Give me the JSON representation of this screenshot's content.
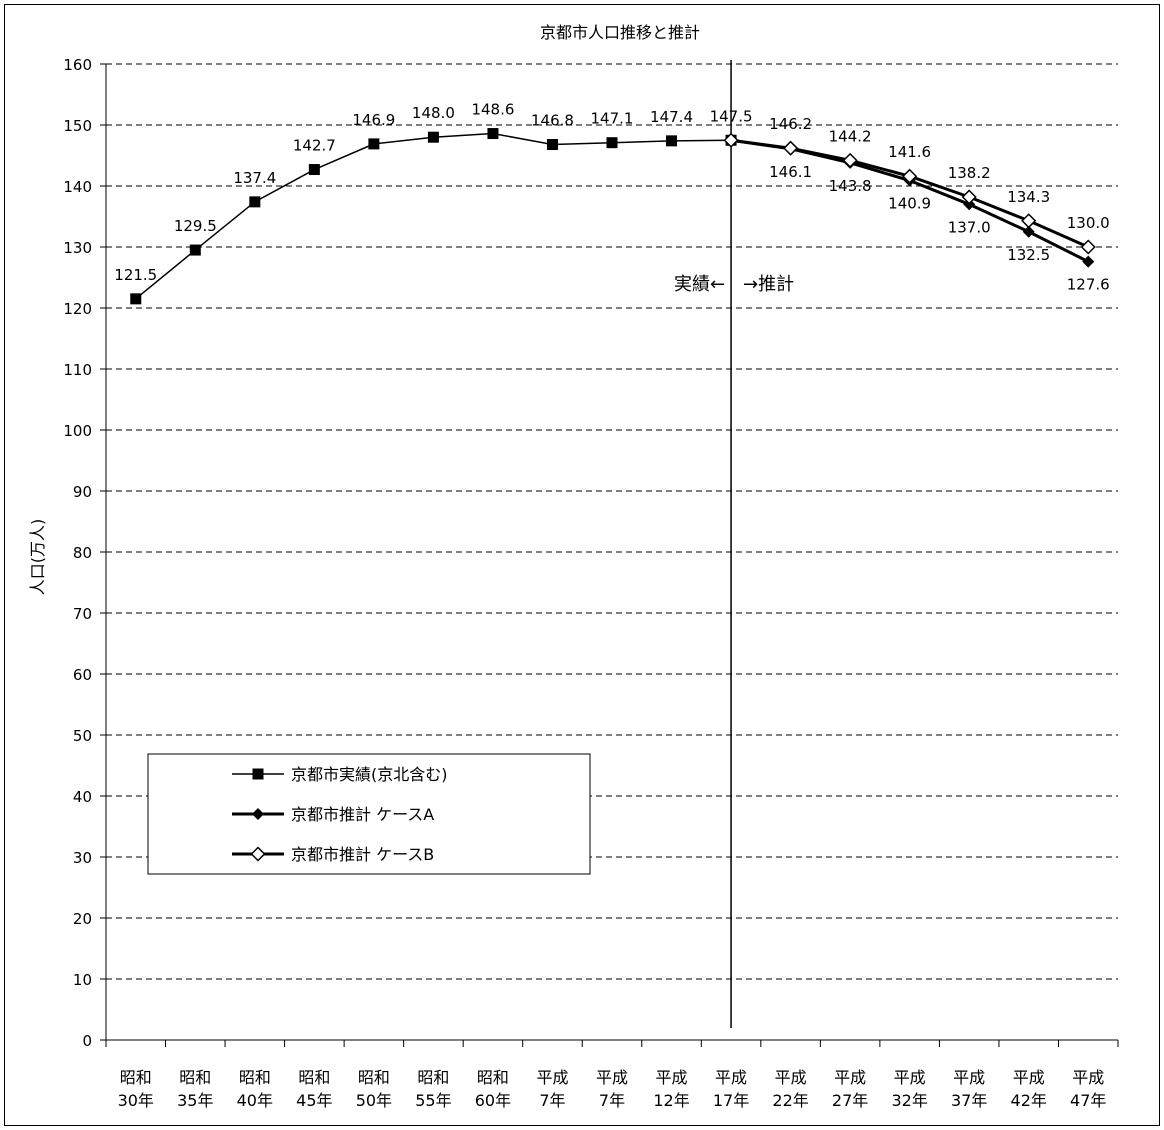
{
  "chart_data": {
    "type": "line",
    "title": "京都市人口推移と推計",
    "ylabel": "人口(万人)",
    "xlabel": "",
    "ylim": [
      0,
      160
    ],
    "yticks": [
      0,
      10,
      20,
      30,
      40,
      50,
      60,
      70,
      80,
      90,
      100,
      110,
      120,
      130,
      140,
      150,
      160
    ],
    "grid": true,
    "categories": [
      [
        "昭和",
        "30年"
      ],
      [
        "昭和",
        "35年"
      ],
      [
        "昭和",
        "40年"
      ],
      [
        "昭和",
        "45年"
      ],
      [
        "昭和",
        "50年"
      ],
      [
        "昭和",
        "55年"
      ],
      [
        "昭和",
        "60年"
      ],
      [
        "平成",
        "7年"
      ],
      [
        "平成",
        "7年"
      ],
      [
        "平成",
        "12年"
      ],
      [
        "平成",
        "17年"
      ],
      [
        "平成",
        "22年"
      ],
      [
        "平成",
        "27年"
      ],
      [
        "平成",
        "32年"
      ],
      [
        "平成",
        "37年"
      ],
      [
        "平成",
        "42年"
      ],
      [
        "平成",
        "47年"
      ]
    ],
    "series": [
      {
        "name": "京都市実績(京北含む)",
        "marker": "square",
        "values": [
          121.5,
          129.5,
          137.4,
          142.7,
          146.9,
          148.0,
          148.6,
          146.8,
          147.1,
          147.4,
          147.5,
          null,
          null,
          null,
          null,
          null,
          null
        ]
      },
      {
        "name": "京都市推計 ケースA",
        "marker": "diamond-filled",
        "values": [
          null,
          null,
          null,
          null,
          null,
          null,
          null,
          null,
          null,
          null,
          147.5,
          146.1,
          143.8,
          140.9,
          137.0,
          132.5,
          127.6
        ]
      },
      {
        "name": "京都市推計 ケースB",
        "marker": "diamond-open",
        "values": [
          null,
          null,
          null,
          null,
          null,
          null,
          null,
          null,
          null,
          null,
          147.5,
          146.2,
          144.2,
          141.6,
          138.2,
          134.3,
          130.0
        ]
      }
    ],
    "data_labels": [
      {
        "series": 0,
        "values": [
          "121.5",
          "129.5",
          "137.4",
          "142.7",
          "146.9",
          "148.0",
          "148.6",
          "146.8",
          "147.1",
          "147.4",
          "147.5"
        ]
      },
      {
        "series": 1,
        "values": [
          "146.1",
          "143.8",
          "140.9",
          "137.0",
          "132.5",
          "127.6"
        ]
      },
      {
        "series": 2,
        "values": [
          "146.2",
          "144.2",
          "141.6",
          "138.2",
          "134.3",
          "130.0"
        ]
      }
    ],
    "divider_label": "実績←　→推計",
    "legend_position": "bottom-left"
  }
}
